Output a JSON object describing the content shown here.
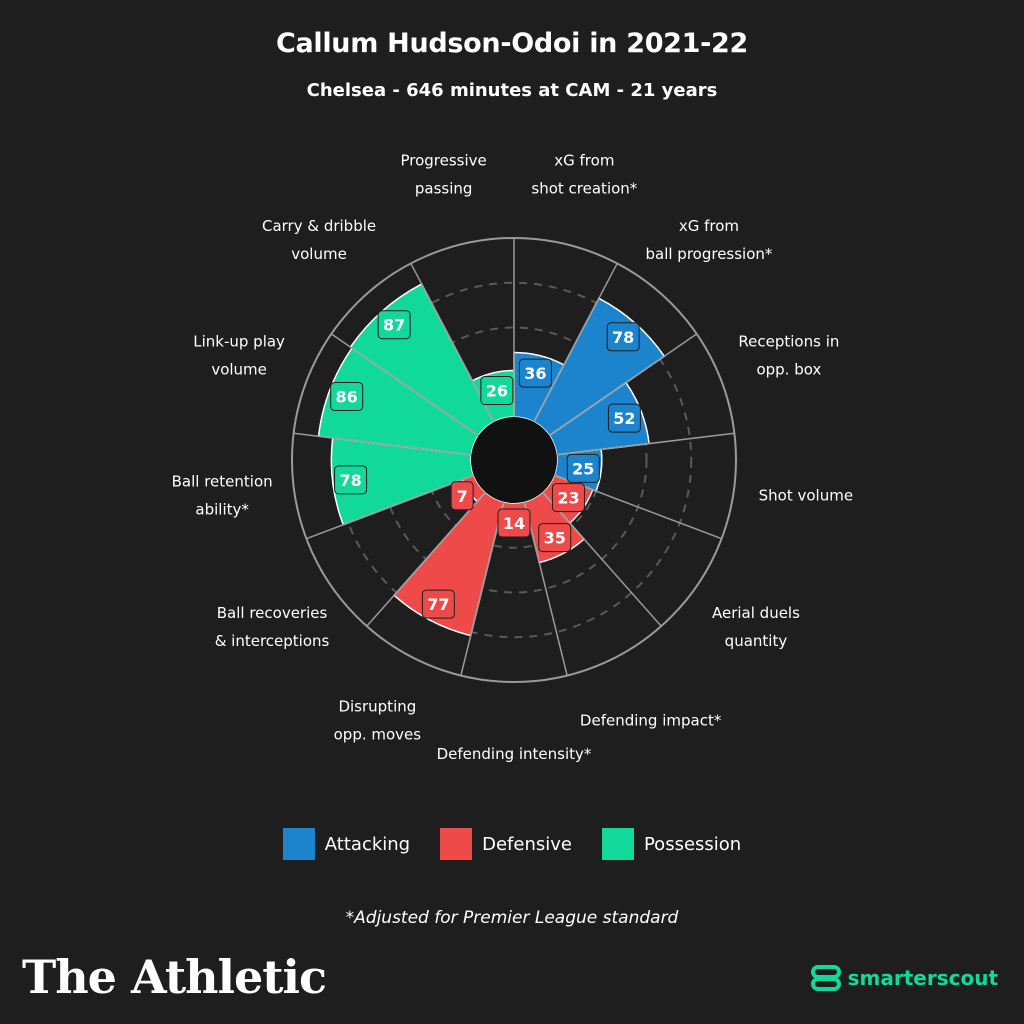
{
  "title": "Callum Hudson-Odoi in 2021-22",
  "subtitle": "Chelsea - 646 minutes at CAM - 21 years",
  "legend": [
    {
      "label": "Attacking",
      "color": "#1b84cc"
    },
    {
      "label": "Defensive",
      "color": "#ef4a4a"
    },
    {
      "label": "Possession",
      "color": "#10d99a"
    }
  ],
  "footnote": "*Adjusted for Premier League standard",
  "brand": "The Athletic",
  "partner": {
    "label": "smarterscout",
    "icon": "smarterscout-logo-icon",
    "color": "#10d99a"
  },
  "chart_data": {
    "type": "polar-bar",
    "ylim": [
      0,
      100
    ],
    "grid": true,
    "categories": [
      {
        "label": [
          "xG from",
          "shot creation*"
        ],
        "value": 36,
        "group": "Attacking"
      },
      {
        "label": [
          "xG from",
          "ball progression*"
        ],
        "value": 78,
        "group": "Attacking"
      },
      {
        "label": [
          "Receptions in",
          "opp. box"
        ],
        "value": 52,
        "group": "Attacking"
      },
      {
        "label": [
          "Shot volume"
        ],
        "value": 25,
        "group": "Attacking"
      },
      {
        "label": [
          "Aerial duels",
          "quantity"
        ],
        "value": 23,
        "group": "Defensive"
      },
      {
        "label": [
          "Defending impact*"
        ],
        "value": 35,
        "group": "Defensive"
      },
      {
        "label": [
          "Defending intensity*"
        ],
        "value": 14,
        "group": "Defensive"
      },
      {
        "label": [
          "Disrupting",
          "opp. moves"
        ],
        "value": 77,
        "group": "Defensive"
      },
      {
        "label": [
          "Ball recoveries",
          "& interceptions"
        ],
        "value": 7,
        "group": "Defensive"
      },
      {
        "label": [
          "Ball retention",
          "ability*"
        ],
        "value": 78,
        "group": "Possession"
      },
      {
        "label": [
          "Link-up play",
          "volume"
        ],
        "value": 86,
        "group": "Possession"
      },
      {
        "label": [
          "Carry & dribble",
          "volume"
        ],
        "value": 87,
        "group": "Possession"
      },
      {
        "label": [
          "Progressive",
          "passing"
        ],
        "value": 26,
        "group": "Possession"
      }
    ]
  }
}
